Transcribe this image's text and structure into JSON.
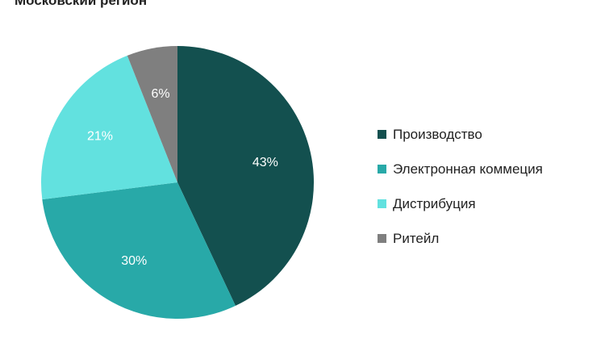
{
  "chart_data": {
    "type": "pie",
    "title": "Московский регион",
    "categories": [
      "Производство",
      "Электронная коммеция",
      "Дистрибуция",
      "Ритейл"
    ],
    "values": [
      43,
      30,
      21,
      6
    ],
    "labels": [
      "43%",
      "30%",
      "21%",
      "6%"
    ],
    "colors": [
      "#13504f",
      "#28a9a8",
      "#62e1df",
      "#7f7f7f"
    ],
    "legend": "right"
  }
}
